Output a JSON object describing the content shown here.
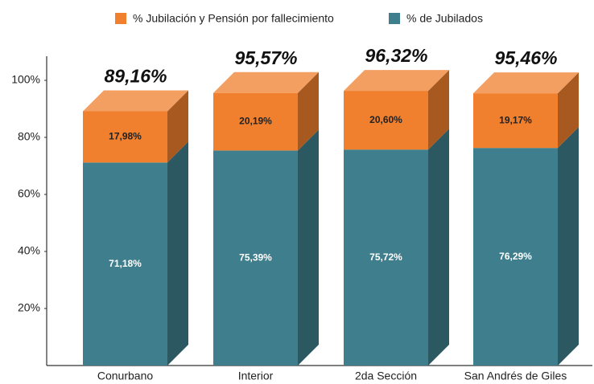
{
  "chart_data": {
    "type": "bar3d_stacked",
    "categories": [
      "Conurbano",
      "Interior",
      "2da Sección",
      "San Andrés de Giles"
    ],
    "series": [
      {
        "name": "% Jubilación y Pensión por fallecimiento",
        "color": "#f07f2e",
        "values": [
          17.98,
          20.19,
          20.6,
          19.17
        ],
        "value_labels": [
          "17,98%",
          "20,19%",
          "20,60%",
          "19,17%"
        ]
      },
      {
        "name": "% de Jubilados",
        "color": "#3f7e8c",
        "values": [
          71.18,
          75.39,
          75.72,
          76.29
        ],
        "value_labels": [
          "71,18%",
          "75,39%",
          "75,72%",
          "76,29%"
        ]
      }
    ],
    "totals": [
      89.16,
      95.57,
      96.32,
      95.46
    ],
    "total_labels": [
      "89,16%",
      "95,57%",
      "96,32%",
      "95,46%"
    ],
    "ylim": [
      0,
      100
    ],
    "yticks": [
      {
        "value": 20,
        "label": "20%"
      },
      {
        "value": 40,
        "label": "40%"
      },
      {
        "value": 60,
        "label": "60%"
      },
      {
        "value": 80,
        "label": "80%"
      },
      {
        "value": 100,
        "label": "100%"
      }
    ],
    "grid": false
  }
}
